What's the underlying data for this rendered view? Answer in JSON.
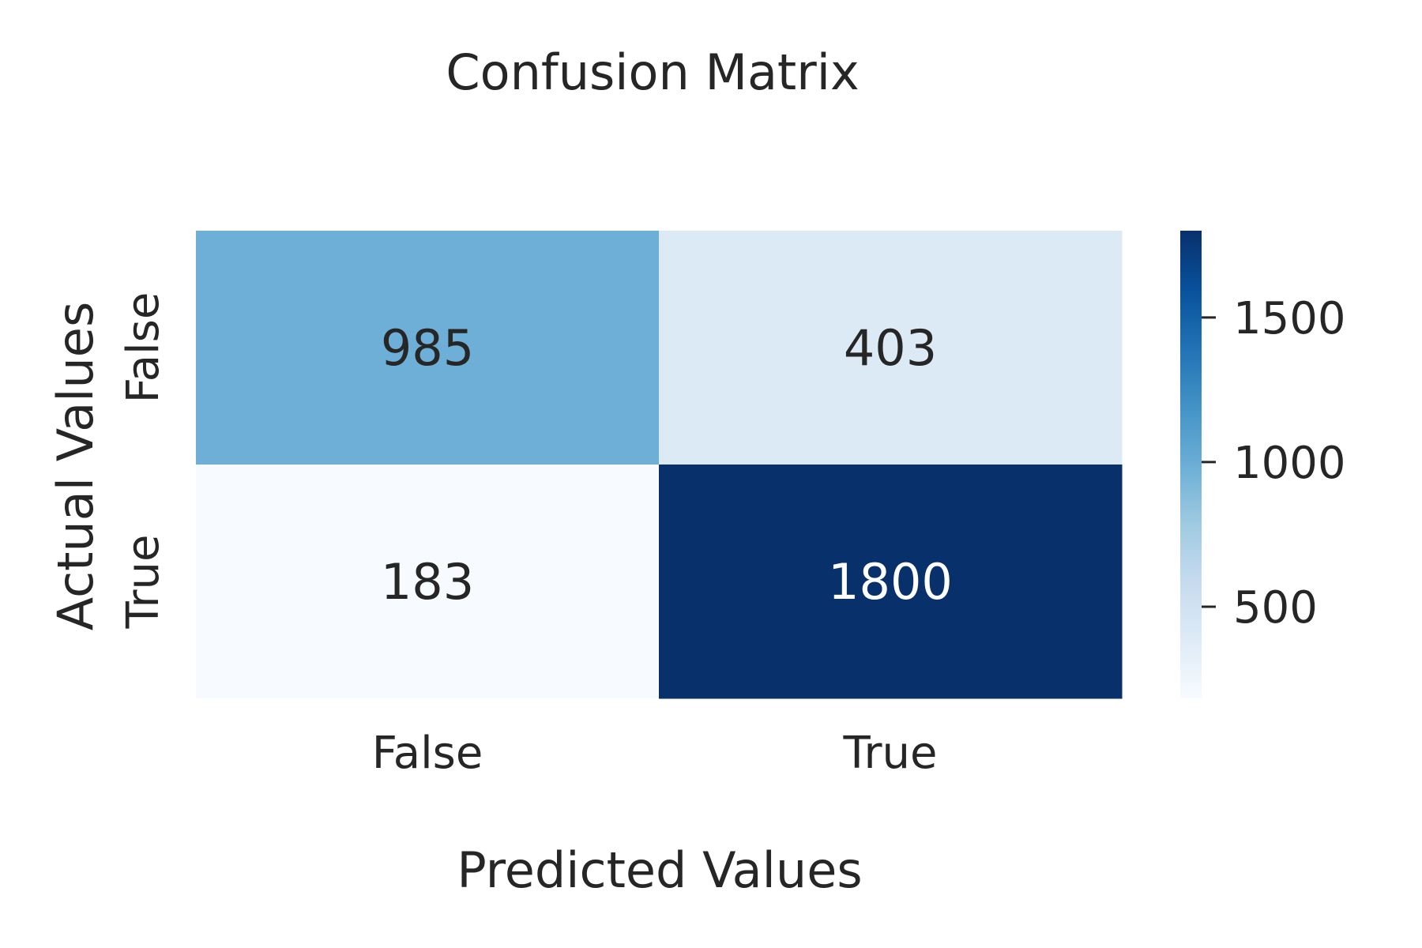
{
  "chart_data": {
    "type": "heatmap",
    "title": "Confusion Matrix",
    "xlabel": "Predicted Values",
    "ylabel": "Actual Values",
    "x_categories": [
      "False",
      "True"
    ],
    "y_categories": [
      "False",
      "True"
    ],
    "values": [
      [
        985,
        403
      ],
      [
        183,
        1800
      ]
    ],
    "cell_labels": [
      [
        "985",
        "403"
      ],
      [
        "183",
        "1800"
      ]
    ],
    "colormap": "Blues",
    "colorbar": {
      "min": 183,
      "max": 1800,
      "ticks": [
        500,
        1000,
        1500
      ],
      "tick_labels": [
        "500",
        "1000",
        "1500"
      ]
    },
    "colors": {
      "low": "#f7fbff",
      "high": "#08306b",
      "text_dark": "#262626",
      "text_light": "#ffffff"
    }
  }
}
